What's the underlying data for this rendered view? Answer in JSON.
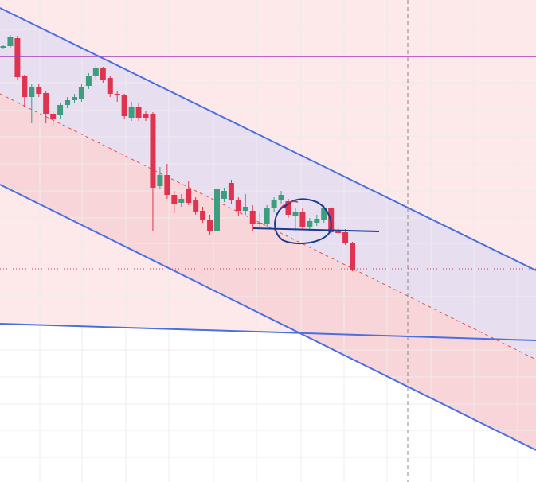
{
  "chart_data": {
    "type": "candlestick",
    "ylim": [
      0,
      606
    ],
    "up_color": "#3d9e7f",
    "down_color": "#e0334f",
    "open": [
      546,
      548,
      558,
      510,
      484,
      496,
      489,
      463,
      462,
      474,
      480,
      482,
      498,
      510,
      520,
      508,
      488,
      486,
      458,
      472,
      463,
      463,
      372,
      386,
      361,
      351,
      369,
      354,
      341,
      330,
      316,
      356,
      376,
      354,
      341,
      341,
      324,
      324,
      344,
      354,
      353,
      334,
      340,
      321,
      326,
      329,
      344,
      316,
      314,
      300
    ],
    "high": [
      550,
      562,
      561,
      512,
      500,
      500,
      491,
      466,
      476,
      484,
      488,
      500,
      514,
      524,
      522,
      510,
      492,
      488,
      478,
      476,
      466,
      465,
      396,
      400,
      366,
      362,
      378,
      358,
      346,
      336,
      370,
      370,
      380,
      358,
      362,
      348,
      338,
      348,
      358,
      366,
      356,
      344,
      344,
      332,
      336,
      348,
      346,
      320,
      318,
      302
    ],
    "low": [
      544,
      546,
      506,
      471,
      451,
      484,
      451,
      448,
      456,
      470,
      476,
      478,
      494,
      506,
      502,
      484,
      478,
      456,
      454,
      454,
      454,
      316,
      368,
      356,
      338,
      346,
      348,
      336,
      326,
      310,
      263,
      352,
      350,
      334,
      336,
      316,
      320,
      320,
      340,
      350,
      332,
      316,
      318,
      316,
      322,
      326,
      310,
      310,
      298,
      265
    ],
    "close": [
      548,
      559,
      509,
      484,
      496,
      488,
      463,
      456,
      474,
      480,
      484,
      496,
      510,
      520,
      506,
      488,
      486,
      460,
      472,
      458,
      458,
      370,
      386,
      361,
      350,
      356,
      351,
      340,
      330,
      316,
      368,
      366,
      354,
      341,
      346,
      324,
      326,
      344,
      354,
      361,
      336,
      340,
      321,
      328,
      331,
      344,
      314,
      313,
      300,
      267
    ]
  }
}
